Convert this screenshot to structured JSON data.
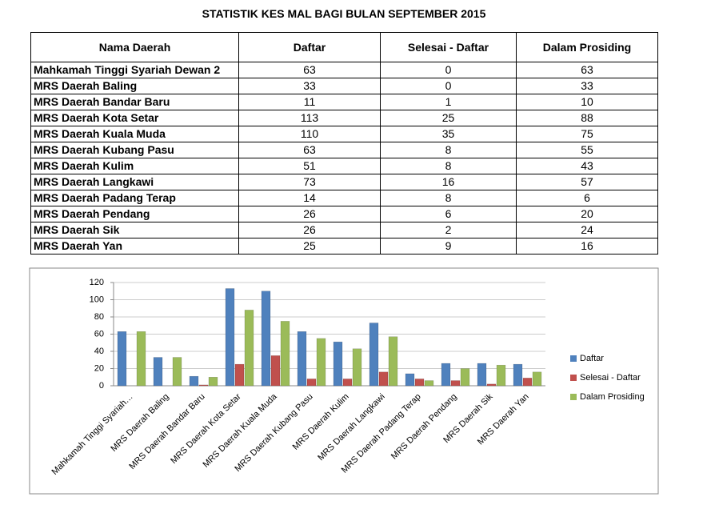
{
  "title": "STATISTIK KES MAL BAGI BULAN SEPTEMBER 2015",
  "table": {
    "header": [
      "Nama Daerah",
      "Daftar",
      "Selesai - Daftar",
      "Dalam Prosiding"
    ],
    "rows": [
      [
        "Mahkamah Tinggi Syariah Dewan 2",
        63,
        0,
        63
      ],
      [
        "MRS Daerah Baling",
        33,
        0,
        33
      ],
      [
        "MRS Daerah Bandar Baru",
        11,
        1,
        10
      ],
      [
        "MRS Daerah Kota Setar",
        113,
        25,
        88
      ],
      [
        "MRS Daerah Kuala Muda",
        110,
        35,
        75
      ],
      [
        "MRS Daerah Kubang Pasu",
        63,
        8,
        55
      ],
      [
        "MRS Daerah Kulim",
        51,
        8,
        43
      ],
      [
        "MRS Daerah Langkawi",
        73,
        16,
        57
      ],
      [
        "MRS Daerah Padang Terap",
        14,
        8,
        6
      ],
      [
        "MRS Daerah Pendang",
        26,
        6,
        20
      ],
      [
        "MRS Daerah Sik",
        26,
        2,
        24
      ],
      [
        "MRS Daerah Yan",
        25,
        9,
        16
      ]
    ]
  },
  "chart_data": {
    "type": "bar",
    "categories": [
      "Mahkamah Tinggi Syariah…",
      "MRS Daerah Baling",
      "MRS Daerah Bandar Baru",
      "MRS Daerah Kota Setar",
      "MRS Daerah Kuala Muda",
      "MRS Daerah Kubang Pasu",
      "MRS Daerah Kulim",
      "MRS Daerah Langkawi",
      "MRS Daerah Padang Terap",
      "MRS Daerah Pendang",
      "MRS Daerah Sik",
      "MRS Daerah Yan"
    ],
    "series": [
      {
        "name": "Daftar",
        "color": "#4f81bd",
        "values": [
          63,
          33,
          11,
          113,
          110,
          63,
          51,
          73,
          14,
          26,
          26,
          25
        ]
      },
      {
        "name": "Selesai - Daftar",
        "color": "#c0504d",
        "values": [
          0,
          0,
          1,
          25,
          35,
          8,
          8,
          16,
          8,
          6,
          2,
          9
        ]
      },
      {
        "name": "Dalam Prosiding",
        "color": "#9bbb59",
        "values": [
          63,
          33,
          10,
          88,
          75,
          55,
          43,
          57,
          6,
          20,
          24,
          16
        ]
      }
    ],
    "ylim": [
      0,
      120
    ],
    "yticks": [
      0,
      20,
      40,
      60,
      80,
      100,
      120
    ],
    "grid": true,
    "legend": "right"
  }
}
